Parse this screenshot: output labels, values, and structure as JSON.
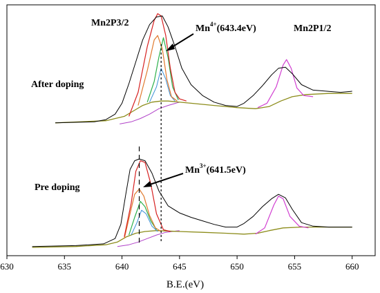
{
  "chart_data": {
    "type": "line",
    "title": "",
    "xlabel": "B.E.(eV)",
    "ylabel": "",
    "xlim": [
      630,
      662
    ],
    "x_ticks": [
      "630",
      "635",
      "640",
      "645",
      "650",
      "655",
      "660"
    ],
    "grid": false,
    "annotations": {
      "mn2p32": "Mn2P3/2",
      "mn2p12": "Mn2P1/2",
      "mn4_prefix": "Mn",
      "mn4_sup": "4+",
      "mn4_suffix": "(643.4eV)",
      "mn3_prefix": "Mn",
      "mn3_sup": "3+",
      "mn3_suffix": "(641.5eV)",
      "after": "After doping",
      "pre": "Pre doping"
    },
    "reference_lines": [
      641.5,
      643.4
    ],
    "colors": {
      "raw": "#000000",
      "background": "#8c8c1a",
      "envelope": "#d62020",
      "mn3_component": "#e07a2e",
      "mn4_component": "#2bb04a",
      "extra_component": "#3a8fd6",
      "p12_component": "#d13fd1",
      "shirley": "#b040c8"
    },
    "panels": [
      {
        "name": "After doping",
        "raw": [
          [
            634.2,
            0.02
          ],
          [
            637.6,
            0.03
          ],
          [
            638.6,
            0.05
          ],
          [
            639.4,
            0.1
          ],
          [
            640,
            0.2
          ],
          [
            640.6,
            0.38
          ],
          [
            641.2,
            0.58
          ],
          [
            641.8,
            0.78
          ],
          [
            642.4,
            0.92
          ],
          [
            643,
            0.99
          ],
          [
            643.5,
            1.0
          ],
          [
            644,
            0.9
          ],
          [
            644.6,
            0.72
          ],
          [
            645.2,
            0.52
          ],
          [
            646,
            0.37
          ],
          [
            647,
            0.27
          ],
          [
            648,
            0.21
          ],
          [
            649,
            0.18
          ],
          [
            650,
            0.17
          ],
          [
            650.6,
            0.2
          ],
          [
            651.4,
            0.27
          ],
          [
            652.2,
            0.36
          ],
          [
            653,
            0.46
          ],
          [
            653.6,
            0.52
          ],
          [
            654.2,
            0.53
          ],
          [
            654.8,
            0.47
          ],
          [
            655.6,
            0.37
          ],
          [
            656.6,
            0.32
          ],
          [
            657.8,
            0.31
          ],
          [
            659,
            0.3
          ],
          [
            660,
            0.31
          ]
        ],
        "background": [
          [
            634.2,
            0.02
          ],
          [
            638.6,
            0.04
          ],
          [
            640.2,
            0.08
          ],
          [
            641,
            0.13
          ],
          [
            641.8,
            0.18
          ],
          [
            642.6,
            0.21
          ],
          [
            643.4,
            0.22
          ],
          [
            644,
            0.22
          ],
          [
            646,
            0.2
          ],
          [
            648,
            0.18
          ],
          [
            650,
            0.16
          ],
          [
            651.6,
            0.15
          ],
          [
            652.8,
            0.17
          ],
          [
            653.8,
            0.22
          ],
          [
            654.8,
            0.26
          ],
          [
            656,
            0.28
          ],
          [
            658,
            0.29
          ],
          [
            660,
            0.29
          ]
        ],
        "envelope": [
          [
            640.6,
            0.08
          ],
          [
            641.4,
            0.3
          ],
          [
            642.2,
            0.72
          ],
          [
            642.8,
            0.96
          ],
          [
            643.1,
            1.02
          ],
          [
            643.4,
            1.0
          ],
          [
            643.8,
            0.82
          ],
          [
            644.2,
            0.52
          ],
          [
            644.6,
            0.3
          ],
          [
            645,
            0.24
          ],
          [
            645.6,
            0.22
          ]
        ],
        "comp_a": [
          [
            641.4,
            0.18
          ],
          [
            642.2,
            0.5
          ],
          [
            642.8,
            0.78
          ],
          [
            643.1,
            0.82
          ],
          [
            643.5,
            0.7
          ],
          [
            643.9,
            0.42
          ],
          [
            644.3,
            0.26
          ],
          [
            644.8,
            0.22
          ]
        ],
        "comp_b": [
          [
            642.2,
            0.21
          ],
          [
            642.8,
            0.4
          ],
          [
            643.2,
            0.62
          ],
          [
            643.6,
            0.8
          ],
          [
            644,
            0.62
          ],
          [
            644.4,
            0.35
          ],
          [
            644.9,
            0.23
          ]
        ],
        "comp_c": [
          [
            642.4,
            0.21
          ],
          [
            643,
            0.35
          ],
          [
            643.4,
            0.52
          ],
          [
            643.8,
            0.42
          ],
          [
            644.2,
            0.27
          ],
          [
            644.6,
            0.22
          ]
        ],
        "p12": [
          [
            651.8,
            0.16
          ],
          [
            652.6,
            0.2
          ],
          [
            653.4,
            0.35
          ],
          [
            654,
            0.55
          ],
          [
            654.3,
            0.6
          ],
          [
            654.7,
            0.52
          ],
          [
            655.2,
            0.34
          ],
          [
            655.8,
            0.27
          ],
          [
            656.6,
            0.26
          ]
        ],
        "shirley": [
          [
            639.8,
            0.01
          ],
          [
            640.8,
            0.03
          ],
          [
            641.6,
            0.06
          ],
          [
            642.4,
            0.1
          ],
          [
            643.2,
            0.15
          ],
          [
            644,
            0.18
          ],
          [
            645,
            0.21
          ]
        ]
      },
      {
        "name": "Pre doping",
        "raw": [
          [
            632.2,
            0.01
          ],
          [
            636,
            0.02
          ],
          [
            638.4,
            0.04
          ],
          [
            639.4,
            0.1
          ],
          [
            639.9,
            0.26
          ],
          [
            640.3,
            0.58
          ],
          [
            640.7,
            0.88
          ],
          [
            641.1,
            0.98
          ],
          [
            641.5,
            1.0
          ],
          [
            642,
            0.98
          ],
          [
            642.6,
            0.84
          ],
          [
            643.2,
            0.64
          ],
          [
            644,
            0.47
          ],
          [
            645,
            0.39
          ],
          [
            646,
            0.34
          ],
          [
            647,
            0.3
          ],
          [
            648,
            0.26
          ],
          [
            649,
            0.23
          ],
          [
            650,
            0.23
          ],
          [
            650.6,
            0.27
          ],
          [
            651.4,
            0.35
          ],
          [
            652.2,
            0.46
          ],
          [
            653,
            0.55
          ],
          [
            653.6,
            0.6
          ],
          [
            654.2,
            0.56
          ],
          [
            654.8,
            0.43
          ],
          [
            655.6,
            0.28
          ],
          [
            656.6,
            0.24
          ],
          [
            658,
            0.23
          ],
          [
            659,
            0.23
          ],
          [
            660,
            0.23
          ]
        ],
        "background": [
          [
            632.2,
            0.0
          ],
          [
            636,
            0.01
          ],
          [
            638.6,
            0.03
          ],
          [
            639.6,
            0.06
          ],
          [
            640.4,
            0.12
          ],
          [
            641.2,
            0.16
          ],
          [
            642,
            0.18
          ],
          [
            643,
            0.19
          ],
          [
            645,
            0.18
          ],
          [
            647,
            0.17
          ],
          [
            649,
            0.16
          ],
          [
            650.6,
            0.15
          ],
          [
            651.8,
            0.16
          ],
          [
            652.8,
            0.19
          ],
          [
            654,
            0.22
          ],
          [
            655.6,
            0.23
          ],
          [
            658,
            0.23
          ],
          [
            660,
            0.23
          ]
        ],
        "envelope": [
          [
            640.2,
            0.12
          ],
          [
            640.8,
            0.5
          ],
          [
            641.2,
            0.86
          ],
          [
            641.6,
            0.98
          ],
          [
            642,
            0.96
          ],
          [
            642.5,
            0.72
          ],
          [
            643,
            0.38
          ],
          [
            643.6,
            0.2
          ],
          [
            644.2,
            0.18
          ]
        ],
        "comp_a": [
          [
            640.2,
            0.1
          ],
          [
            640.7,
            0.38
          ],
          [
            641.1,
            0.6
          ],
          [
            641.5,
            0.66
          ],
          [
            641.9,
            0.58
          ],
          [
            642.4,
            0.36
          ],
          [
            642.9,
            0.22
          ],
          [
            643.4,
            0.18
          ]
        ],
        "comp_b": [
          [
            640.6,
            0.14
          ],
          [
            641.1,
            0.34
          ],
          [
            641.6,
            0.52
          ],
          [
            642,
            0.46
          ],
          [
            642.5,
            0.3
          ],
          [
            643,
            0.2
          ]
        ],
        "comp_c": [
          [
            640.8,
            0.14
          ],
          [
            641.3,
            0.28
          ],
          [
            641.7,
            0.42
          ],
          [
            642.1,
            0.38
          ],
          [
            642.6,
            0.24
          ],
          [
            643.1,
            0.18
          ]
        ],
        "p12": [
          [
            651.6,
            0.15
          ],
          [
            652.4,
            0.22
          ],
          [
            653.2,
            0.48
          ],
          [
            653.6,
            0.58
          ],
          [
            654,
            0.55
          ],
          [
            654.6,
            0.35
          ],
          [
            655.4,
            0.24
          ],
          [
            656.2,
            0.22
          ]
        ],
        "shirley": [
          [
            639.6,
            0.01
          ],
          [
            640.6,
            0.03
          ],
          [
            641.4,
            0.06
          ],
          [
            642.2,
            0.1
          ],
          [
            643,
            0.14
          ],
          [
            643.8,
            0.17
          ],
          [
            645,
            0.19
          ]
        ]
      }
    ]
  }
}
